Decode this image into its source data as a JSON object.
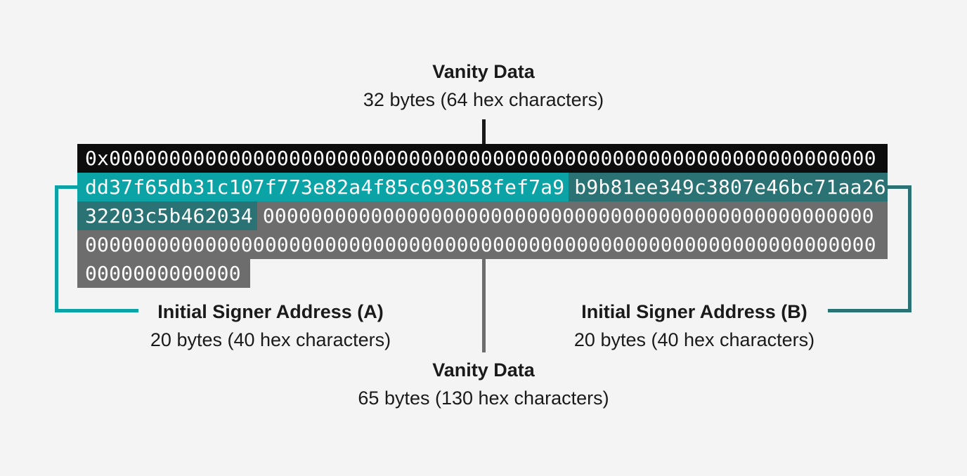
{
  "colors": {
    "background": "#F4F4F4",
    "row-black": "#0D0D0D",
    "teal-light": "#0BA3A5",
    "teal-dark": "#2A7273",
    "row-gray": "#6D6D6D",
    "hex-text": "#FFFFFF",
    "label-text": "#1A1A1A",
    "connector-black": "#1A1A1A"
  },
  "top_label": {
    "title": "Vanity Data",
    "subtitle": "32 bytes (64 hex characters)"
  },
  "left_label": {
    "title": "Initial Signer Address (A)",
    "subtitle": "20 bytes (40 hex characters)"
  },
  "right_label": {
    "title": "Initial Signer Address (B)",
    "subtitle": "20 bytes (40 hex characters)"
  },
  "bottom_label": {
    "title": "Vanity Data",
    "subtitle": "65 bytes (130 hex characters)"
  },
  "hex_block": {
    "rows": [
      {
        "segments": [
          {
            "name": "prefix-and-vanity-hex",
            "style": "black",
            "fill": true,
            "text": "0x0000000000000000000000000000000000000000000000000000000000000000"
          }
        ]
      },
      {
        "segments": [
          {
            "name": "signer-a-address-hex",
            "style": "teal-light",
            "fill": false,
            "text": "dd37f65db31c107f773e82a4f85c693058fef7a9"
          },
          {
            "name": "signer-b-address-hex-part1",
            "style": "teal-dark",
            "fill": true,
            "text": "b9b81ee349c3807e46bc71aa26"
          }
        ]
      },
      {
        "segments": [
          {
            "name": "signer-b-address-hex-part2",
            "style": "teal-dark",
            "fill": false,
            "text": "32203c5b462034"
          },
          {
            "name": "vanity-padding-zeros-1",
            "style": "gray",
            "fill": true,
            "text": "000000000000000000000000000000000000000000000000000"
          }
        ]
      },
      {
        "segments": [
          {
            "name": "vanity-padding-zeros-2",
            "style": "gray",
            "fill": true,
            "text": "000000000000000000000000000000000000000000000000000000000000000000"
          }
        ]
      },
      {
        "segments": [
          {
            "name": "vanity-padding-zeros-3",
            "style": "gray",
            "fill": false,
            "text": "0000000000000"
          }
        ]
      }
    ]
  }
}
